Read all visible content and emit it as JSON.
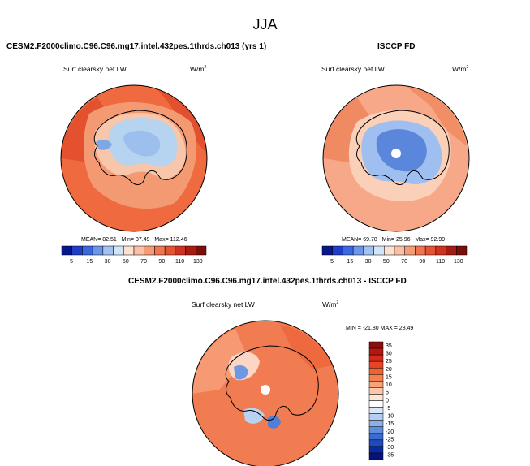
{
  "title": "JJA",
  "colors": {
    "ocean_model": "#f2693f",
    "ocean_obs": "#f6a686",
    "ocean_diff": "#f27b50",
    "ice_model": "#b6d3ef",
    "ice_obs": "#7aa5e2",
    "coast": "#000000"
  },
  "chart_data": [
    {
      "type": "heatmap",
      "projection": "south-polar-stereographic",
      "title": "CESM2.F2000climo.C96.C96.mg17.intel.432pes.1thrds.ch013 (yrs 1)",
      "variable": "Surf clearsky net LW",
      "units": "W/m",
      "units_exp": "2",
      "stats": {
        "mean_label": "MEAN=",
        "mean": "82.51",
        "min_label": "Min=",
        "min": "37.49",
        "max_label": "Max=",
        "max": "112.46"
      },
      "colorbar_levels": [
        "5",
        "15",
        "30",
        "50",
        "70",
        "90",
        "110",
        "130"
      ],
      "colorbar_colors": [
        "#08168c",
        "#1d3ec8",
        "#3a68e0",
        "#6e96e8",
        "#a4c2f0",
        "#d3e4f8",
        "#fbe1d3",
        "#f8c0a6",
        "#f49c78",
        "#ef7650",
        "#e35432",
        "#cc3320",
        "#a61c13",
        "#7a0e0b"
      ]
    },
    {
      "type": "heatmap",
      "projection": "south-polar-stereographic",
      "title": "ISCCP FD",
      "variable": "Surf clearsky net LW",
      "units": "W/m",
      "units_exp": "2",
      "stats": {
        "mean_label": "MEAN=",
        "mean": "69.78",
        "min_label": "Min=",
        "min": "25.96",
        "max_label": "Max=",
        "max": "92.99"
      },
      "colorbar_levels": [
        "5",
        "15",
        "30",
        "50",
        "70",
        "90",
        "110",
        "130"
      ],
      "colorbar_colors": [
        "#08168c",
        "#1d3ec8",
        "#3a68e0",
        "#6e96e8",
        "#a4c2f0",
        "#d3e4f8",
        "#fbe1d3",
        "#f8c0a6",
        "#f49c78",
        "#ef7650",
        "#e35432",
        "#cc3320",
        "#a61c13",
        "#7a0e0b"
      ]
    },
    {
      "type": "heatmap",
      "projection": "south-polar-stereographic",
      "title": "CESM2.F2000climo.C96.C96.mg17.intel.432pes.1thrds.ch013 - ISCCP FD",
      "variable": "Surf clearsky net LW",
      "units": "W/m",
      "units_exp": "2",
      "stats": {
        "min_label": "MIN =",
        "min": "-21.80",
        "max_label": "MAX =",
        "max": "28.49"
      },
      "colorbar_levels": [
        "35",
        "30",
        "25",
        "20",
        "15",
        "10",
        "5",
        "0",
        "-5",
        "-10",
        "-15",
        "-20",
        "-25",
        "-30",
        "-35"
      ],
      "colorbar_colors": [
        "#8e0d0d",
        "#b5170f",
        "#d62a18",
        "#ea4426",
        "#f26234",
        "#f68150",
        "#f8a27a",
        "#fbc6aa",
        "#fde6d6",
        "#ffffff",
        "#dbe7f8",
        "#b4cdf0",
        "#8bafe6",
        "#5f8edc",
        "#3a6cd0",
        "#2049bd",
        "#0c2aa0",
        "#07137a"
      ]
    }
  ]
}
